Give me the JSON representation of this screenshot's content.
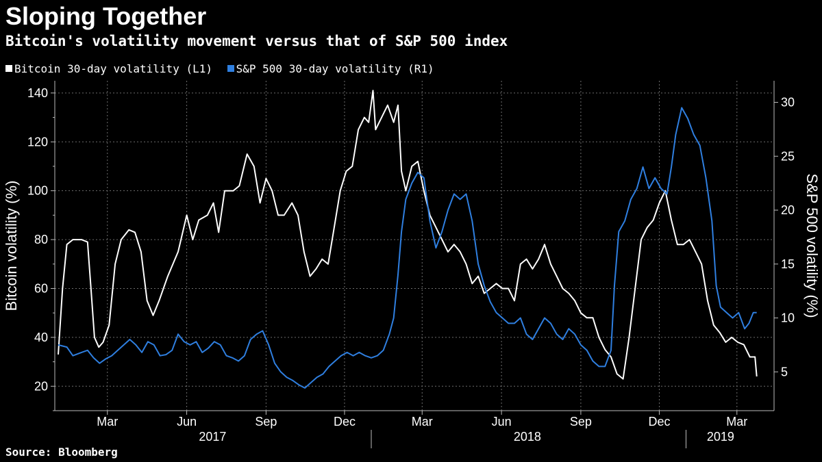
{
  "title": "Sloping Together",
  "subtitle": "Bitcoin's volatility movement versus that of S&P 500 index",
  "source": "Source: Bloomberg",
  "legend": [
    {
      "label": "Bitcoin 30-day volatility  (L1)",
      "color": "#ffffff"
    },
    {
      "label": "S&P 500 30-day volatility (R1)",
      "color": "#2f7fe0"
    }
  ],
  "colors": {
    "background": "#000000",
    "grid": "#6e6e6e",
    "axis": "#bdbdbd"
  },
  "chart_data": {
    "type": "line",
    "xlabel": "",
    "left_axis": {
      "label": "Bitcoin volatility (%)",
      "range": [
        10,
        145
      ],
      "ticks": [
        20,
        40,
        60,
        80,
        100,
        120,
        140
      ]
    },
    "right_axis": {
      "label": "S&P 500 volatility (%)",
      "range": [
        1.4,
        32
      ],
      "ticks": [
        5,
        10,
        15,
        20,
        25,
        30
      ]
    },
    "x_range": [
      "2017-01-03",
      "2019-03-25"
    ],
    "month_ticks": [
      {
        "label": "Mar",
        "date": "2017-03-01"
      },
      {
        "label": "Jun",
        "date": "2017-06-01"
      },
      {
        "label": "Sep",
        "date": "2017-09-01"
      },
      {
        "label": "Dec",
        "date": "2017-12-01"
      },
      {
        "label": "Mar",
        "date": "2018-03-01"
      },
      {
        "label": "Jun",
        "date": "2018-06-01"
      },
      {
        "label": "Sep",
        "date": "2018-09-01"
      },
      {
        "label": "Dec",
        "date": "2018-12-01"
      },
      {
        "label": "Mar",
        "date": "2019-03-01"
      }
    ],
    "years": [
      {
        "label": "2017",
        "center": "2017-07-01"
      },
      {
        "label": "2018",
        "center": "2018-07-01"
      },
      {
        "label": "2019",
        "center": "2019-02-10"
      }
    ],
    "year_separators": [
      "2018-01-01",
      "2019-01-01"
    ],
    "grid": true,
    "legend_position": "top-left",
    "series": [
      {
        "name": "Bitcoin 30-day volatility  (L1)",
        "axis": "left",
        "color": "#ffffff",
        "points": [
          [
            "2017-01-03",
            33
          ],
          [
            "2017-01-08",
            60
          ],
          [
            "2017-01-13",
            78
          ],
          [
            "2017-01-20",
            80
          ],
          [
            "2017-01-30",
            80
          ],
          [
            "2017-02-06",
            79
          ],
          [
            "2017-02-10",
            60
          ],
          [
            "2017-02-14",
            40
          ],
          [
            "2017-02-19",
            36
          ],
          [
            "2017-02-24",
            38
          ],
          [
            "2017-03-03",
            45
          ],
          [
            "2017-03-10",
            70
          ],
          [
            "2017-03-17",
            80
          ],
          [
            "2017-03-26",
            84
          ],
          [
            "2017-04-02",
            83
          ],
          [
            "2017-04-09",
            75
          ],
          [
            "2017-04-16",
            55
          ],
          [
            "2017-04-23",
            49
          ],
          [
            "2017-04-30",
            55
          ],
          [
            "2017-05-10",
            65
          ],
          [
            "2017-05-22",
            75
          ],
          [
            "2017-06-01",
            90
          ],
          [
            "2017-06-08",
            80
          ],
          [
            "2017-06-15",
            88
          ],
          [
            "2017-06-25",
            90
          ],
          [
            "2017-07-02",
            95
          ],
          [
            "2017-07-08",
            83
          ],
          [
            "2017-07-15",
            100
          ],
          [
            "2017-07-25",
            100
          ],
          [
            "2017-08-01",
            102
          ],
          [
            "2017-08-10",
            115
          ],
          [
            "2017-08-18",
            110
          ],
          [
            "2017-08-25",
            95
          ],
          [
            "2017-09-01",
            105
          ],
          [
            "2017-09-08",
            100
          ],
          [
            "2017-09-15",
            90
          ],
          [
            "2017-09-22",
            90
          ],
          [
            "2017-10-01",
            95
          ],
          [
            "2017-10-08",
            90
          ],
          [
            "2017-10-15",
            75
          ],
          [
            "2017-10-22",
            65
          ],
          [
            "2017-10-29",
            68
          ],
          [
            "2017-11-05",
            72
          ],
          [
            "2017-11-12",
            70
          ],
          [
            "2017-11-19",
            85
          ],
          [
            "2017-11-26",
            100
          ],
          [
            "2017-12-03",
            108
          ],
          [
            "2017-12-10",
            110
          ],
          [
            "2017-12-17",
            125
          ],
          [
            "2017-12-24",
            130
          ],
          [
            "2017-12-29",
            128
          ],
          [
            "2018-01-03",
            141
          ],
          [
            "2018-01-06",
            125
          ],
          [
            "2018-01-13",
            130
          ],
          [
            "2018-01-20",
            135
          ],
          [
            "2018-01-27",
            128
          ],
          [
            "2018-02-01",
            135
          ],
          [
            "2018-02-05",
            108
          ],
          [
            "2018-02-10",
            100
          ],
          [
            "2018-02-17",
            110
          ],
          [
            "2018-02-24",
            112
          ],
          [
            "2018-03-03",
            100
          ],
          [
            "2018-03-10",
            90
          ],
          [
            "2018-03-17",
            85
          ],
          [
            "2018-03-24",
            80
          ],
          [
            "2018-03-31",
            75
          ],
          [
            "2018-04-07",
            78
          ],
          [
            "2018-04-14",
            75
          ],
          [
            "2018-04-21",
            70
          ],
          [
            "2018-04-28",
            62
          ],
          [
            "2018-05-05",
            65
          ],
          [
            "2018-05-12",
            58
          ],
          [
            "2018-05-19",
            60
          ],
          [
            "2018-05-26",
            62
          ],
          [
            "2018-06-02",
            60
          ],
          [
            "2018-06-09",
            60
          ],
          [
            "2018-06-16",
            55
          ],
          [
            "2018-06-23",
            70
          ],
          [
            "2018-06-30",
            72
          ],
          [
            "2018-07-07",
            68
          ],
          [
            "2018-07-14",
            72
          ],
          [
            "2018-07-21",
            78
          ],
          [
            "2018-07-28",
            70
          ],
          [
            "2018-08-04",
            65
          ],
          [
            "2018-08-11",
            60
          ],
          [
            "2018-08-18",
            58
          ],
          [
            "2018-08-25",
            55
          ],
          [
            "2018-09-01",
            50
          ],
          [
            "2018-09-08",
            48
          ],
          [
            "2018-09-15",
            48
          ],
          [
            "2018-09-22",
            40
          ],
          [
            "2018-09-29",
            35
          ],
          [
            "2018-10-06",
            32
          ],
          [
            "2018-10-13",
            25
          ],
          [
            "2018-10-20",
            23
          ],
          [
            "2018-10-27",
            40
          ],
          [
            "2018-11-03",
            60
          ],
          [
            "2018-11-10",
            80
          ],
          [
            "2018-11-17",
            85
          ],
          [
            "2018-11-24",
            88
          ],
          [
            "2018-12-01",
            95
          ],
          [
            "2018-12-08",
            100
          ],
          [
            "2018-12-15",
            88
          ],
          [
            "2018-12-22",
            78
          ],
          [
            "2018-12-29",
            78
          ],
          [
            "2019-01-05",
            80
          ],
          [
            "2019-01-12",
            75
          ],
          [
            "2019-01-19",
            70
          ],
          [
            "2019-01-26",
            55
          ],
          [
            "2019-02-02",
            45
          ],
          [
            "2019-02-09",
            42
          ],
          [
            "2019-02-16",
            38
          ],
          [
            "2019-02-23",
            40
          ],
          [
            "2019-03-02",
            38
          ],
          [
            "2019-03-09",
            37
          ],
          [
            "2019-03-16",
            32
          ],
          [
            "2019-03-22",
            32
          ],
          [
            "2019-03-24",
            24
          ]
        ]
      },
      {
        "name": "S&P 500 30-day volatility (R1)",
        "axis": "right",
        "color": "#2f7fe0",
        "points": [
          [
            "2017-01-03",
            7.5
          ],
          [
            "2017-01-13",
            7.3
          ],
          [
            "2017-01-20",
            6.5
          ],
          [
            "2017-01-30",
            6.8
          ],
          [
            "2017-02-06",
            7
          ],
          [
            "2017-02-13",
            6.3
          ],
          [
            "2017-02-20",
            5.8
          ],
          [
            "2017-02-27",
            6.2
          ],
          [
            "2017-03-06",
            6.5
          ],
          [
            "2017-03-13",
            7
          ],
          [
            "2017-03-20",
            7.5
          ],
          [
            "2017-03-27",
            8
          ],
          [
            "2017-04-03",
            7.5
          ],
          [
            "2017-04-10",
            6.8
          ],
          [
            "2017-04-17",
            7.8
          ],
          [
            "2017-04-24",
            7.5
          ],
          [
            "2017-05-01",
            6.5
          ],
          [
            "2017-05-08",
            6.6
          ],
          [
            "2017-05-15",
            7
          ],
          [
            "2017-05-22",
            8.5
          ],
          [
            "2017-05-29",
            7.8
          ],
          [
            "2017-06-05",
            7.5
          ],
          [
            "2017-06-12",
            7.8
          ],
          [
            "2017-06-19",
            6.8
          ],
          [
            "2017-06-26",
            7.2
          ],
          [
            "2017-07-03",
            7.8
          ],
          [
            "2017-07-10",
            7.5
          ],
          [
            "2017-07-17",
            6.5
          ],
          [
            "2017-07-24",
            6.3
          ],
          [
            "2017-07-31",
            6
          ],
          [
            "2017-08-07",
            6.5
          ],
          [
            "2017-08-14",
            8
          ],
          [
            "2017-08-21",
            8.5
          ],
          [
            "2017-08-28",
            8.8
          ],
          [
            "2017-09-04",
            7.5
          ],
          [
            "2017-09-11",
            5.8
          ],
          [
            "2017-09-18",
            5
          ],
          [
            "2017-09-25",
            4.5
          ],
          [
            "2017-10-02",
            4.2
          ],
          [
            "2017-10-09",
            3.8
          ],
          [
            "2017-10-16",
            3.5
          ],
          [
            "2017-10-23",
            4
          ],
          [
            "2017-10-30",
            4.5
          ],
          [
            "2017-11-06",
            4.8
          ],
          [
            "2017-11-13",
            5.5
          ],
          [
            "2017-11-20",
            6
          ],
          [
            "2017-11-27",
            6.5
          ],
          [
            "2017-12-04",
            6.8
          ],
          [
            "2017-12-11",
            6.5
          ],
          [
            "2017-12-18",
            6.8
          ],
          [
            "2017-12-25",
            6.5
          ],
          [
            "2018-01-01",
            6.3
          ],
          [
            "2018-01-08",
            6.5
          ],
          [
            "2018-01-15",
            7
          ],
          [
            "2018-01-22",
            8.5
          ],
          [
            "2018-01-27",
            10
          ],
          [
            "2018-02-01",
            14
          ],
          [
            "2018-02-05",
            18
          ],
          [
            "2018-02-10",
            21
          ],
          [
            "2018-02-17",
            22.5
          ],
          [
            "2018-02-24",
            23.5
          ],
          [
            "2018-03-03",
            23
          ],
          [
            "2018-03-10",
            19
          ],
          [
            "2018-03-17",
            16.5
          ],
          [
            "2018-03-24",
            18
          ],
          [
            "2018-03-31",
            20
          ],
          [
            "2018-04-07",
            21.5
          ],
          [
            "2018-04-14",
            21
          ],
          [
            "2018-04-21",
            21.5
          ],
          [
            "2018-04-28",
            19
          ],
          [
            "2018-05-05",
            15
          ],
          [
            "2018-05-12",
            13
          ],
          [
            "2018-05-19",
            11.5
          ],
          [
            "2018-05-26",
            10.5
          ],
          [
            "2018-06-02",
            10
          ],
          [
            "2018-06-09",
            9.5
          ],
          [
            "2018-06-16",
            9.5
          ],
          [
            "2018-06-23",
            10
          ],
          [
            "2018-06-30",
            8.5
          ],
          [
            "2018-07-07",
            8
          ],
          [
            "2018-07-14",
            9
          ],
          [
            "2018-07-21",
            10
          ],
          [
            "2018-07-28",
            9.5
          ],
          [
            "2018-08-04",
            8.5
          ],
          [
            "2018-08-11",
            8
          ],
          [
            "2018-08-18",
            9
          ],
          [
            "2018-08-25",
            8.5
          ],
          [
            "2018-09-01",
            7.5
          ],
          [
            "2018-09-08",
            7
          ],
          [
            "2018-09-15",
            6
          ],
          [
            "2018-09-22",
            5.5
          ],
          [
            "2018-09-29",
            5.5
          ],
          [
            "2018-10-06",
            7
          ],
          [
            "2018-10-10",
            13
          ],
          [
            "2018-10-15",
            18
          ],
          [
            "2018-10-22",
            19
          ],
          [
            "2018-10-29",
            21
          ],
          [
            "2018-11-05",
            22
          ],
          [
            "2018-11-12",
            24
          ],
          [
            "2018-11-19",
            22
          ],
          [
            "2018-11-26",
            23
          ],
          [
            "2018-12-03",
            22
          ],
          [
            "2018-12-10",
            21.5
          ],
          [
            "2018-12-15",
            24
          ],
          [
            "2018-12-20",
            27
          ],
          [
            "2018-12-27",
            29.5
          ],
          [
            "2019-01-03",
            28.5
          ],
          [
            "2019-01-10",
            27
          ],
          [
            "2019-01-17",
            26
          ],
          [
            "2019-01-24",
            23
          ],
          [
            "2019-01-31",
            19
          ],
          [
            "2019-02-05",
            13
          ],
          [
            "2019-02-10",
            11
          ],
          [
            "2019-02-17",
            10.5
          ],
          [
            "2019-02-24",
            10
          ],
          [
            "2019-03-03",
            10.5
          ],
          [
            "2019-03-10",
            9
          ],
          [
            "2019-03-15",
            9.5
          ],
          [
            "2019-03-20",
            10.5
          ],
          [
            "2019-03-24",
            10.5
          ]
        ]
      }
    ]
  }
}
